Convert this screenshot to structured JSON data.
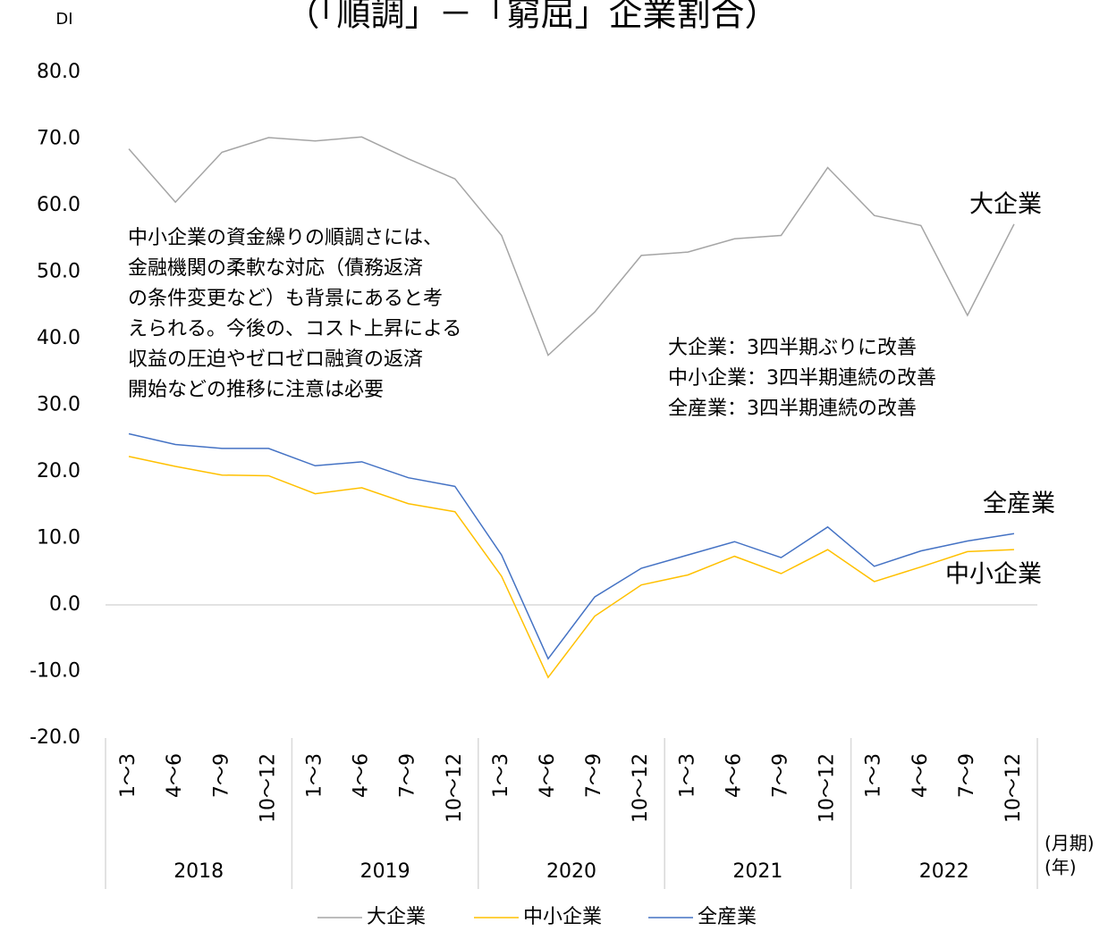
{
  "chart_data": {
    "type": "line",
    "title": "（「順調」－「窮屈」企業割合）",
    "y_axis_label": "DI",
    "x_axis_label_quarter": "(月期)",
    "x_axis_label_year": "(年)",
    "categories": [
      "1～3",
      "4～6",
      "7～9",
      "10～12",
      "1～3",
      "4～6",
      "7～9",
      "10～12",
      "1～3",
      "4～6",
      "7～9",
      "10～12",
      "1～3",
      "4～6",
      "7～9",
      "10～12",
      "1～3",
      "4～6",
      "7～9",
      "10～12"
    ],
    "year_groups": [
      "2018",
      "2019",
      "2020",
      "2021",
      "2022"
    ],
    "ylim": [
      -20,
      80
    ],
    "yticks": [
      {
        "value": -20,
        "label": "-20.0"
      },
      {
        "value": -10,
        "label": "-10.0"
      },
      {
        "value": 0,
        "label": "0.0"
      },
      {
        "value": 10,
        "label": "10.0"
      },
      {
        "value": 20,
        "label": "20.0"
      },
      {
        "value": 30,
        "label": "30.0"
      },
      {
        "value": 40,
        "label": "40.0"
      },
      {
        "value": 50,
        "label": "50.0"
      },
      {
        "value": 60,
        "label": "60.0"
      },
      {
        "value": 70,
        "label": "70.0"
      },
      {
        "value": 80,
        "label": "80.0"
      }
    ],
    "legend": "bottom",
    "series": [
      {
        "name": "大企業",
        "color": "#a5a5a5",
        "values": [
          68.5,
          60.5,
          68,
          70.2,
          69.7,
          70.3,
          67,
          64,
          55.5,
          37.5,
          44,
          52.5,
          53,
          55,
          55.5,
          65.7,
          58.5,
          57,
          43.5,
          57.2
        ]
      },
      {
        "name": "中小企業",
        "color": "#ffc000",
        "values": [
          22.3,
          20.8,
          19.5,
          19.4,
          16.7,
          17.6,
          15.2,
          14,
          4.3,
          -10.9,
          -1.7,
          3,
          4.5,
          7.3,
          4.7,
          8.3,
          3.5,
          5.7,
          8,
          8.3
        ]
      },
      {
        "name": "全産業",
        "color": "#4472c4",
        "values": [
          25.7,
          24.1,
          23.5,
          23.5,
          20.9,
          21.5,
          19.1,
          17.8,
          7.5,
          -8.1,
          1.2,
          5.5,
          7.5,
          9.5,
          7.1,
          11.7,
          5.8,
          8.1,
          9.6,
          10.7
        ]
      }
    ],
    "annotation_left": [
      "中小企業の資金繰りの順調さには、",
      "金融機関の柔軟な対応（債務返済",
      "の条件変更など）も背景にあると考",
      "えられる。今後の、コスト上昇による",
      "収益の圧迫やゼロゼロ融資の返済",
      "開始などの推移に注意は必要"
    ],
    "annotation_right": [
      "大企業：3四半期ぶりに改善",
      "中小企業：3四半期連続の改善",
      "全産業：3四半期連続の改善"
    ],
    "line_labels": [
      "大企業",
      "全産業",
      "中小企業"
    ]
  }
}
